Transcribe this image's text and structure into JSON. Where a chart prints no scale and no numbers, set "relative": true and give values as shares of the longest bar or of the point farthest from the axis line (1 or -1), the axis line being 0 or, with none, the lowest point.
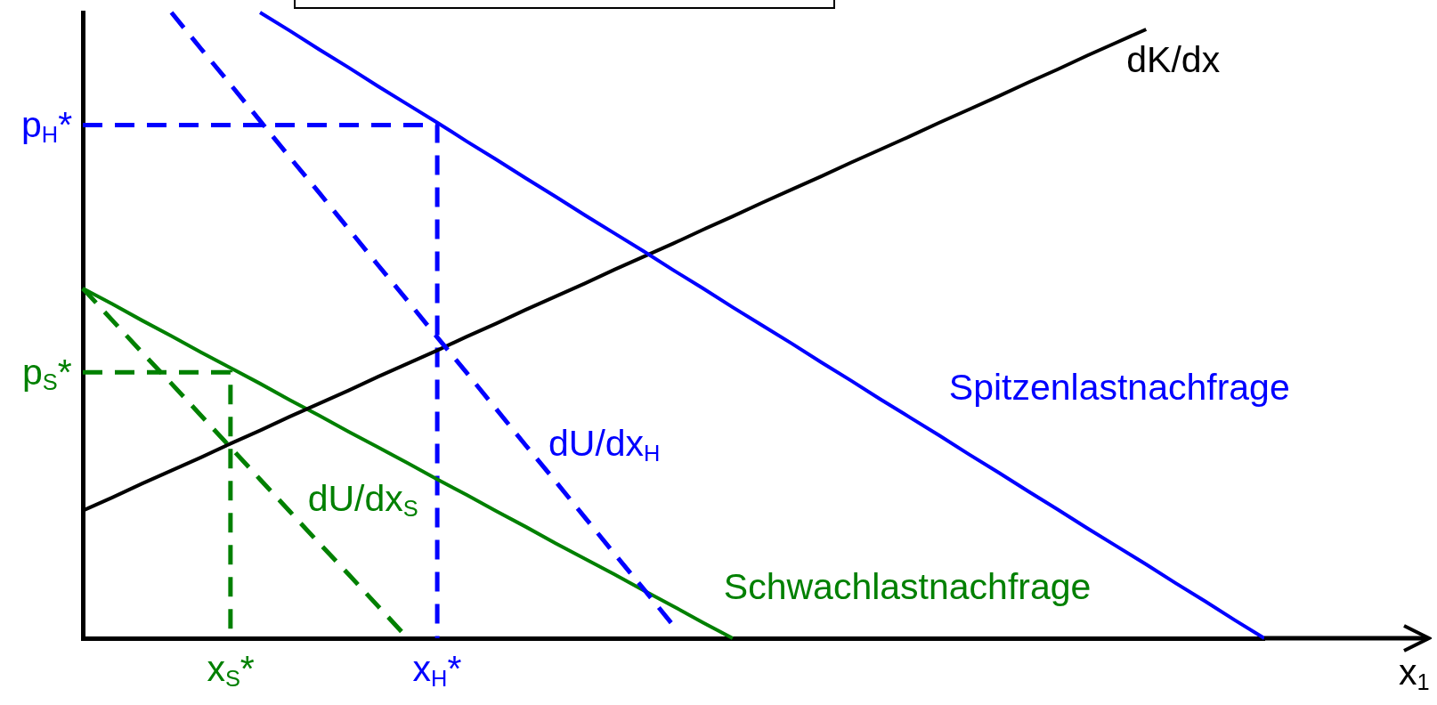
{
  "chart_data": {
    "type": "line",
    "relative": true,
    "xlabel": "x$_{1}$",
    "categories": [
      null,
      null,
      null,
      null,
      null,
      "x$_{S}$*",
      null,
      null,
      null,
      null,
      null,
      null,
      "x$_{H}$*",
      null,
      null,
      null,
      null,
      null,
      null,
      null,
      null,
      null,
      null,
      null,
      null,
      null,
      null,
      null,
      null,
      null,
      null,
      null,
      null,
      null,
      null,
      null,
      null,
      null,
      null,
      null,
      null
    ],
    "series": [
      {
        "name": "Spitzenlastnachfrage",
        "color": "#0000ff",
        "values": [
          null,
          null,
          null,
          null,
          null,
          null,
          1,
          0.971,
          0.941,
          0.912,
          0.882,
          0.853,
          0.824,
          0.794,
          0.765,
          0.735,
          0.706,
          0.676,
          0.647,
          0.618,
          0.588,
          0.559,
          0.529,
          0.5,
          0.471,
          0.441,
          0.412,
          0.382,
          0.353,
          0.324,
          0.294,
          0.265,
          0.235,
          0.206,
          0.176,
          0.147,
          0.118,
          0.088,
          0.059,
          0.029,
          0
        ]
      },
      {
        "name": "dU/dx$_{H}$",
        "color": "#0000ff",
        "line_style": "dashed",
        "values": [
          null,
          null,
          null,
          1,
          0.942,
          0.885,
          0.827,
          0.769,
          0.712,
          0.654,
          0.596,
          0.539,
          0.481,
          0.424,
          0.366,
          0.308,
          0.251,
          0.193,
          0.135,
          0.078,
          0.02,
          null,
          null,
          null,
          null,
          null,
          null,
          null,
          null,
          null,
          null,
          null,
          null,
          null,
          null,
          null,
          null,
          null,
          null,
          null,
          null
        ]
      },
      {
        "name": "dK/dx",
        "color": "#000000",
        "values": [
          0.204,
          0.225,
          0.247,
          0.268,
          0.289,
          0.311,
          0.332,
          0.354,
          0.375,
          0.396,
          0.418,
          0.439,
          0.46,
          0.482,
          0.503,
          0.525,
          0.546,
          0.567,
          0.589,
          0.61,
          0.631,
          0.653,
          0.674,
          0.696,
          0.717,
          0.738,
          0.76,
          0.781,
          0.802,
          0.824,
          0.845,
          0.866,
          0.888,
          0.909,
          0.931,
          0.952,
          0.973,
          null,
          null,
          null,
          null
        ]
      },
      {
        "name": "Schwachlastnachfrage",
        "color": "#008000",
        "values": [
          0.559,
          0.534,
          0.508,
          0.483,
          0.457,
          0.432,
          0.407,
          0.381,
          0.356,
          0.33,
          0.305,
          0.28,
          0.254,
          0.229,
          0.203,
          0.178,
          0.152,
          0.127,
          0.102,
          0.076,
          0.051,
          0.025,
          0,
          null,
          null,
          null,
          null,
          null,
          null,
          null,
          null,
          null,
          null,
          null,
          null,
          null,
          null,
          null,
          null,
          null,
          null
        ]
      },
      {
        "name": "dU/dx$_{S}$",
        "color": "#008000",
        "line_style": "dashed",
        "values": [
          0.559,
          0.508,
          0.457,
          0.407,
          0.356,
          0.305,
          0.254,
          0.203,
          0.152,
          0.102,
          0.051,
          0,
          null,
          null,
          null,
          null,
          null,
          null,
          null,
          null,
          null,
          null,
          null,
          null,
          null,
          null,
          null,
          null,
          null,
          null,
          null,
          null,
          null,
          null,
          null,
          null,
          null,
          null,
          null,
          null,
          null
        ]
      },
      {
        "type": "step",
        "color": "#0000ff",
        "line_style": "dashed",
        "values": [
          0.82,
          0.82,
          0.82,
          0.82,
          0.82,
          0.82,
          0.82,
          0.82,
          0.82,
          0.82,
          0.82,
          0.82,
          0,
          null,
          null,
          null,
          null,
          null,
          null,
          null,
          null,
          null,
          null,
          null,
          null,
          null,
          null,
          null,
          null,
          null,
          null,
          null,
          null,
          null,
          null,
          null,
          null,
          null,
          null,
          null,
          null
        ]
      },
      {
        "type": "step",
        "color": "#008000",
        "line_style": "dashed",
        "values": [
          0.425,
          0.425,
          0.425,
          0.425,
          0.425,
          0,
          null,
          null,
          null,
          null,
          null,
          null,
          null,
          null,
          null,
          null,
          null,
          null,
          null,
          null,
          null,
          null,
          null,
          null,
          null,
          null,
          null,
          null,
          null,
          null,
          null,
          null,
          null,
          null,
          null,
          null,
          null,
          null,
          null,
          null,
          null
        ]
      }
    ],
    "annotations": [
      "p$_{H}$*",
      "p$_{S}$*"
    ]
  }
}
